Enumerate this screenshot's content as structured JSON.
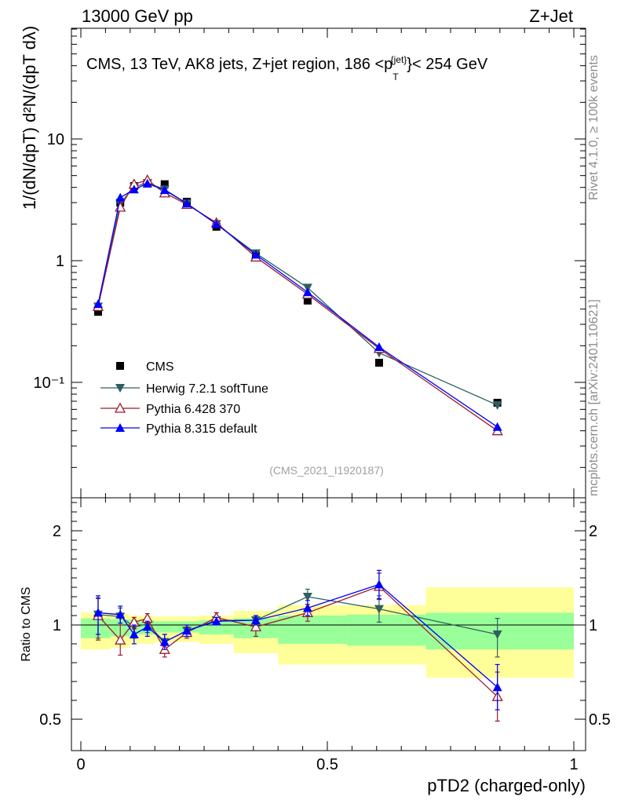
{
  "header": {
    "left": "13000 GeV pp",
    "right": "Z+Jet"
  },
  "plot_title": "CMS, 13 TeV, AK8 jets, Z+jet region, 186 <p",
  "plot_title_sup": "{jet}",
  "plot_title_sub": "T",
  "plot_title_end": "}< 254 GeV",
  "side_labels": {
    "rivet": "Rivet 4.1.0, ≥ 100k events",
    "mcplots": "mcplots.cern.ch [arXiv:2401.10621]"
  },
  "analysis_id": "(CMS_2021_I1920187)",
  "main_ylabel": "1/(dN/dpT) d²N/(dpT dλ)",
  "ratio_ylabel": "Ratio to CMS",
  "xlabel": "pTD2 (charged-only)",
  "colors": {
    "cms": "#000000",
    "herwig": "#2f6060",
    "pythia6": "#9b1b30",
    "pythia8": "#0000ff",
    "band_inner": "#99ff99",
    "band_outer": "#ffff99"
  },
  "chart_data": {
    "type": "scatter",
    "x_range": [
      0,
      1
    ],
    "x_ticks": [
      0,
      0.5,
      1
    ],
    "x_tick_labels": [
      "0",
      "0.5",
      "1"
    ],
    "main": {
      "yscale": "log",
      "ylim": [
        0.015,
        80
      ],
      "y_tick_values": [
        0.1,
        1,
        10
      ],
      "y_tick_labels": [
        "10⁻¹",
        "1",
        "10"
      ]
    },
    "ratio": {
      "ylim": [
        0.42,
        2.35
      ],
      "y_tick_values": [
        0.5,
        1,
        2
      ],
      "y_tick_labels": [
        "0.5",
        "1",
        "2"
      ]
    },
    "x": [
      0.035,
      0.08,
      0.108,
      0.135,
      0.17,
      0.215,
      0.275,
      0.355,
      0.46,
      0.605,
      0.845
    ],
    "band_edges": [
      0.0,
      0.06,
      0.1,
      0.12,
      0.15,
      0.19,
      0.24,
      0.31,
      0.4,
      0.54,
      0.7,
      1.0
    ],
    "band_inner": [
      [
        0.93,
        1.07
      ],
      [
        0.94,
        1.06
      ],
      [
        0.95,
        1.05
      ],
      [
        0.95,
        1.05
      ],
      [
        0.96,
        1.04
      ],
      [
        0.96,
        1.04
      ],
      [
        0.95,
        1.05
      ],
      [
        0.93,
        1.07
      ],
      [
        0.9,
        1.1
      ],
      [
        0.89,
        1.11
      ],
      [
        0.87,
        1.13
      ]
    ],
    "band_outer": [
      [
        0.87,
        1.13
      ],
      [
        0.88,
        1.12
      ],
      [
        0.9,
        1.1
      ],
      [
        0.9,
        1.1
      ],
      [
        0.91,
        1.09
      ],
      [
        0.91,
        1.09
      ],
      [
        0.9,
        1.1
      ],
      [
        0.85,
        1.15
      ],
      [
        0.79,
        1.21
      ],
      [
        0.79,
        1.21
      ],
      [
        0.72,
        1.4
      ]
    ],
    "series": [
      {
        "name": "CMS",
        "key": "cms",
        "marker": "square",
        "values": [
          0.38,
          3.0,
          4.1,
          4.3,
          4.25,
          3.05,
          1.9,
          1.1,
          0.47,
          0.145,
          0.068
        ]
      },
      {
        "name": "Herwig 7.2.1 softTune",
        "key": "herwig",
        "marker": "triangle-down",
        "values": [
          0.42,
          2.95,
          4.05,
          4.35,
          3.85,
          2.95,
          2.0,
          1.15,
          0.6,
          0.175,
          0.065
        ],
        "ratio": [
          1.11,
          1.09,
          0.99,
          1.01,
          0.91,
          0.97,
          1.05,
          1.05,
          1.3,
          1.17,
          0.95
        ],
        "ratio_err": [
          0.18,
          0.09,
          0.06,
          0.05,
          0.04,
          0.03,
          0.04,
          0.05,
          0.08,
          0.14,
          0.12
        ]
      },
      {
        "name": "Pythia 6.428 370",
        "key": "pythia6",
        "marker": "triangle-up-open",
        "values": [
          0.42,
          2.75,
          4.25,
          4.6,
          3.6,
          2.9,
          2.05,
          1.07,
          0.53,
          0.19,
          0.04
        ],
        "ratio": [
          1.1,
          0.92,
          1.03,
          1.07,
          0.87,
          0.96,
          1.08,
          0.99,
          1.13,
          1.41,
          0.62
        ],
        "ratio_err": [
          0.18,
          0.08,
          0.05,
          0.05,
          0.04,
          0.03,
          0.05,
          0.05,
          0.09,
          0.14,
          0.13
        ]
      },
      {
        "name": "Pythia 8.315 default",
        "key": "pythia8",
        "marker": "triangle-up",
        "values": [
          0.44,
          3.3,
          3.85,
          4.3,
          3.8,
          2.95,
          2.0,
          1.12,
          0.55,
          0.195,
          0.043
        ],
        "ratio": [
          1.13,
          1.11,
          0.95,
          0.99,
          0.91,
          0.97,
          1.04,
          1.05,
          1.18,
          1.43,
          0.67
        ],
        "ratio_err": [
          0.18,
          0.09,
          0.05,
          0.05,
          0.04,
          0.03,
          0.04,
          0.05,
          0.08,
          0.15,
          0.12
        ]
      }
    ]
  }
}
